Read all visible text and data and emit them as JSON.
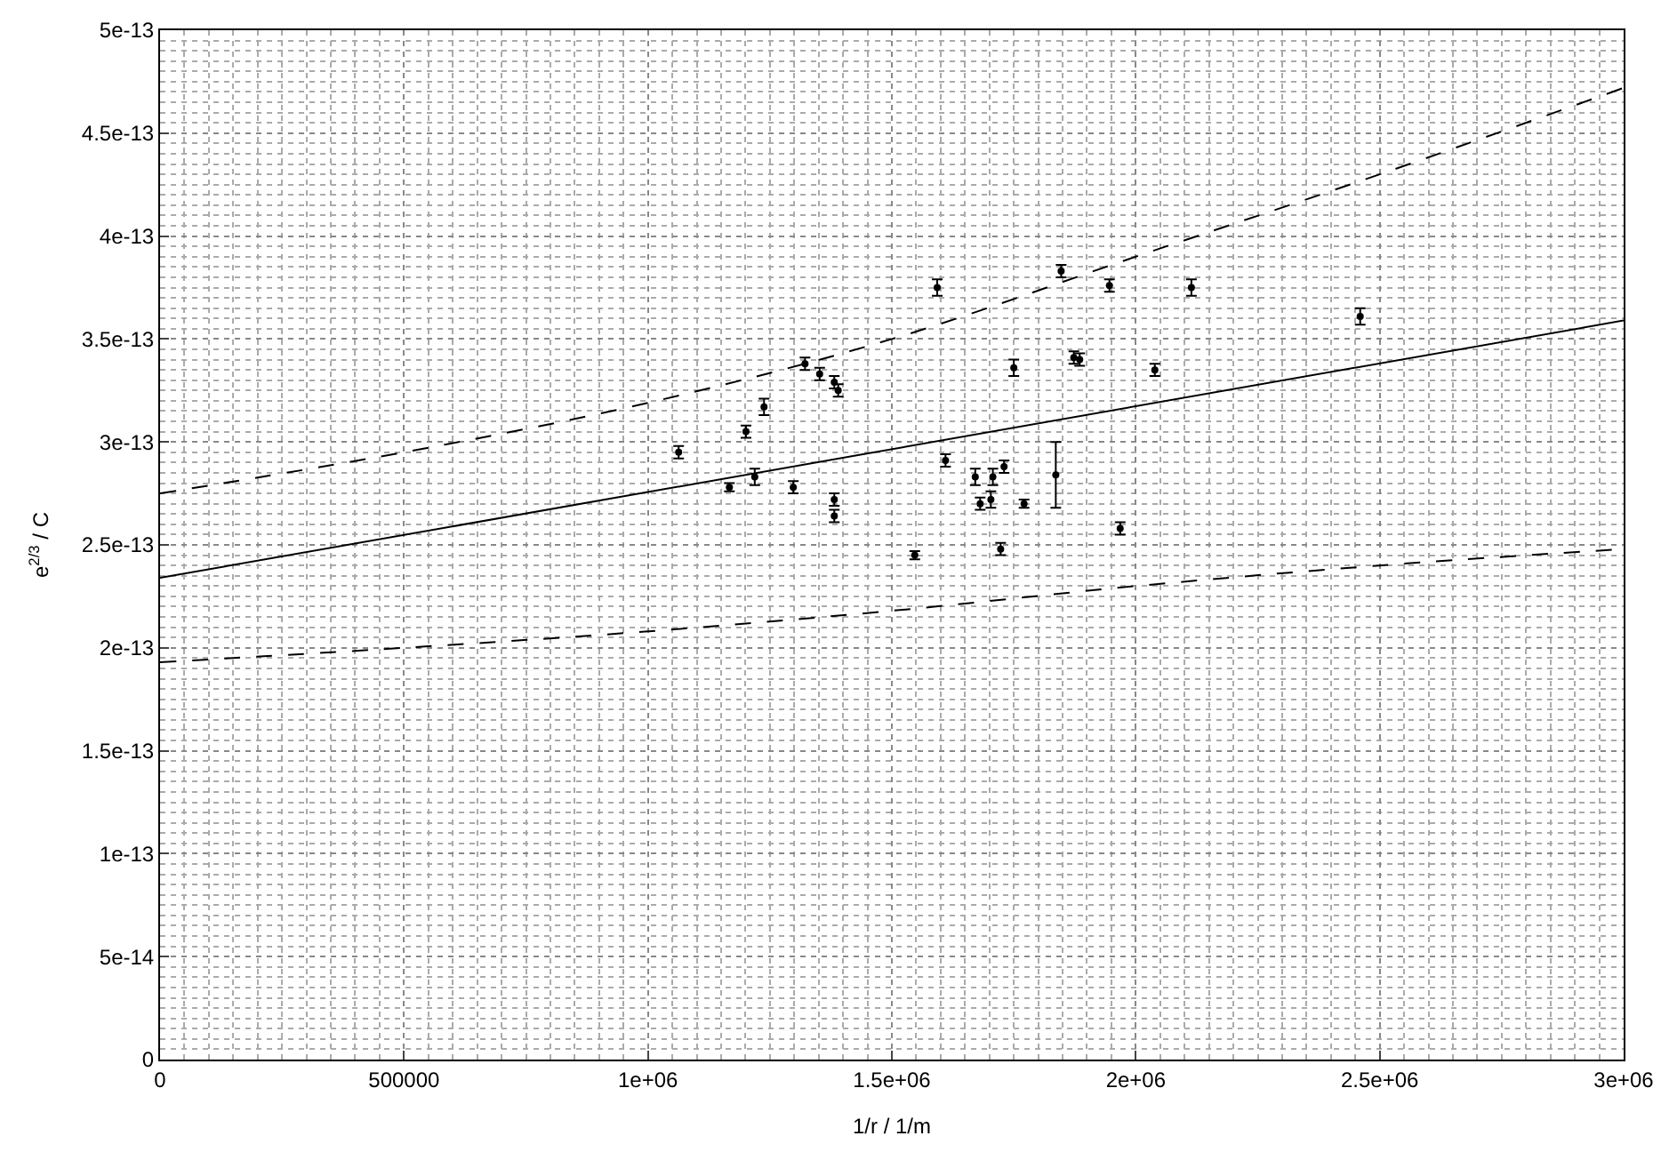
{
  "chart_data": {
    "type": "scatter",
    "xlabel": "1/r / 1/m",
    "ylabel": "e$^{2/3}$ / C",
    "xlim": [
      0,
      3000000
    ],
    "ylim": [
      0,
      5e-13
    ],
    "xticks": [
      0,
      500000,
      {
        "value": 1000000,
        "label": "1e+06"
      },
      {
        "value": 1500000,
        "label": "1.5e+06"
      },
      {
        "value": 2000000,
        "label": "2e+06"
      },
      {
        "value": 2500000,
        "label": "2.5e+06"
      },
      {
        "value": 3000000,
        "label": "3e+06"
      }
    ],
    "yticks": [
      0,
      5e-14,
      1e-13,
      1.5e-13,
      2e-13,
      2.5e-13,
      3e-13,
      3.5e-13,
      4e-13,
      4.5e-13,
      5e-13
    ],
    "grid": true,
    "legend": false,
    "series": [
      {
        "color": "#000000",
        "marker": "circle",
        "x": [
          1063000,
          1167000,
          1201000,
          1219000,
          1238000,
          1298000,
          1322000,
          1352000,
          1382000,
          1390000,
          1382000,
          1382000,
          1547000,
          1610000,
          1750000,
          1671000,
          1681000,
          1707000,
          1703000,
          1730000,
          1723000,
          1771000,
          1836000,
          1873000,
          1885000,
          1968000,
          1593000,
          1847000,
          1946000,
          2114000,
          2039000,
          2460000
        ],
        "values": [
          2.95e-13,
          2.78e-13,
          3.05e-13,
          2.83e-13,
          3.17e-13,
          2.78e-13,
          3.38e-13,
          3.33e-13,
          3.29e-13,
          3.25e-13,
          2.72e-13,
          2.64e-13,
          2.45e-13,
          2.91e-13,
          3.36e-13,
          2.83e-13,
          2.7e-13,
          2.83e-13,
          2.72e-13,
          2.88e-13,
          2.48e-13,
          2.7e-13,
          2.84e-13,
          3.41e-13,
          3.4e-13,
          2.58e-13,
          3.75e-13,
          3.83e-13,
          3.76e-13,
          3.75e-13,
          3.35e-13,
          3.61e-13
        ],
        "errors": [
          3e-15,
          2e-15,
          3e-15,
          4e-15,
          4e-15,
          3e-15,
          3e-15,
          3e-15,
          3e-15,
          3e-15,
          3e-15,
          3e-15,
          2e-15,
          3e-15,
          4e-15,
          4e-15,
          3e-15,
          4e-15,
          4e-15,
          3e-15,
          3e-15,
          2e-15,
          1.6e-14,
          3e-15,
          3e-15,
          3e-15,
          4e-15,
          3e-15,
          3e-15,
          4e-15,
          3e-15,
          4e-15
        ]
      },
      {
        "type": "line",
        "color": "#000000",
        "line_style": "solid",
        "x": [
          0,
          3000000
        ],
        "values": [
          2.34e-13,
          3.59e-13
        ]
      },
      {
        "type": "line",
        "color": "#000000",
        "line_style": "dashed",
        "x": [
          0,
          500000,
          1000000,
          1500000,
          2000000,
          2500000,
          3000000
        ],
        "values": [
          2.75e-13,
          2.95e-13,
          3.19e-13,
          3.5e-13,
          3.9e-13,
          4.3e-13,
          4.72e-13
        ]
      },
      {
        "type": "line",
        "color": "#000000",
        "line_style": "dashed",
        "x": [
          0,
          500000,
          1000000,
          1500000,
          2000000,
          2500000,
          3000000
        ],
        "values": [
          1.93e-13,
          2e-13,
          2.08e-13,
          2.18e-13,
          2.3e-13,
          2.4e-13,
          2.48e-13
        ]
      }
    ]
  }
}
